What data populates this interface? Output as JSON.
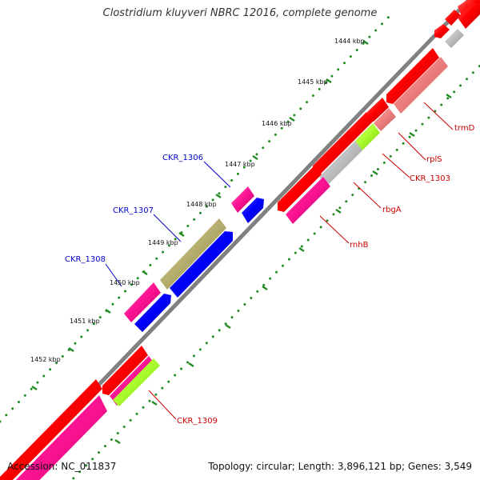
{
  "title": "Clostridium kluyveri NBRC 12016, complete genome",
  "footer": {
    "accession": "Accession: NC_011837",
    "info": "Topology: circular; Length: 3,896,121 bp; Genes: 3,549"
  },
  "ticks": [
    {
      "label": "1444 kbp"
    },
    {
      "label": "1445 kbp"
    },
    {
      "label": "1446 kbp"
    },
    {
      "label": "1447 kbp"
    },
    {
      "label": "1448 kbp"
    },
    {
      "label": "1449 kbp"
    },
    {
      "label": "1450 kbp"
    },
    {
      "label": "1451 kbp"
    },
    {
      "label": "1452 kbp"
    }
  ],
  "gene_labels": {
    "outer": [
      "CKR_1306",
      "CKR_1307",
      "CKR_1308"
    ],
    "inner": [
      "trmD",
      "rplS",
      "CKR_1303",
      "rbgA",
      "rnhB",
      "CKR_1309"
    ]
  },
  "colors": {
    "backbone": "#808080",
    "forward_label": "#0000cc",
    "reverse_label": "#cc0000",
    "tick_dot": "#228b22",
    "red_cds": "#ff0000",
    "pink_cds": "#ff1493",
    "salmon_cds": "#f08080",
    "gray_cds": "#c0c0c0",
    "lime_cds": "#adff2f",
    "blue_cds": "#0000ff",
    "khaki_cds": "#b8b070"
  },
  "legend_icons": [
    "cds-arrow-icon"
  ]
}
